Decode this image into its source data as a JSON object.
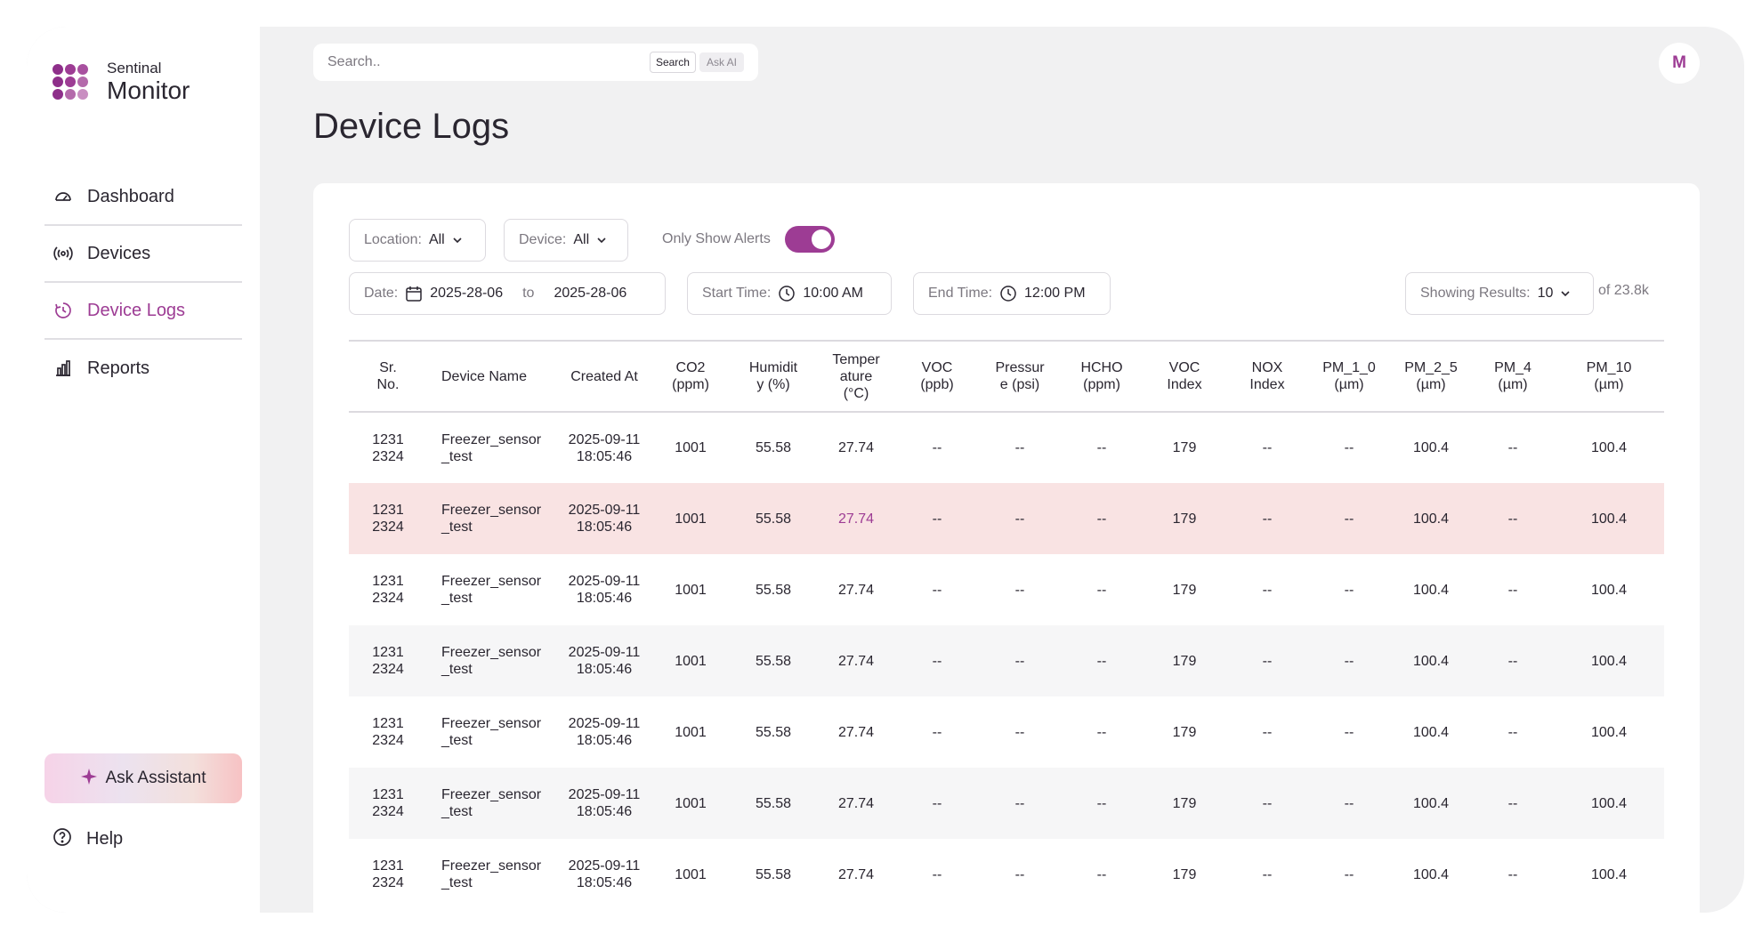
{
  "brand": {
    "small": "Sentinal",
    "big": "Monitor",
    "logo_colors": [
      "#8e2f8a",
      "#9d3c94",
      "#a8509f",
      "#8e2f8a",
      "#9d3c94",
      "#b46aab",
      "#8e2f8a",
      "#b46aab",
      "#c98ec1"
    ]
  },
  "nav": {
    "items": [
      {
        "label": "Dashboard",
        "icon": "gauge-icon"
      },
      {
        "label": "Devices",
        "icon": "broadcast-icon"
      },
      {
        "label": "Device Logs",
        "icon": "clock-logs-icon"
      },
      {
        "label": "Reports",
        "icon": "bar-chart-icon"
      }
    ],
    "active": "Device Logs"
  },
  "assistant": {
    "label": "Ask Assistant",
    "icon": "sparkle-icon"
  },
  "help": {
    "label": "Help",
    "icon": "help-circle-icon"
  },
  "search": {
    "placeholder": "Search..",
    "search_label": "Search",
    "ai_label": "Ask AI"
  },
  "user": {
    "initial": "M"
  },
  "page": {
    "title": "Device Logs"
  },
  "filters": {
    "location_key": "Location:",
    "location_value": "All",
    "device_key": "Device:",
    "device_value": "All",
    "alerts_label": "Only Show Alerts",
    "alerts_on": true,
    "date_key": "Date:",
    "date_from": "2025-28-06",
    "date_to_word": "to",
    "date_to": "2025-28-06",
    "start_key": "Start Time:",
    "start_value": "10:00 AM",
    "end_key": "End Time:",
    "end_value": "12:00 PM",
    "results_key": "Showing Results:",
    "results_value": "10",
    "total": "of 23.8k"
  },
  "colors": {
    "accent": "#9d3c94",
    "alert_row": "#f9e3e3",
    "background": "#f1f1f2"
  },
  "table": {
    "headers": [
      [
        "Sr.",
        "No."
      ],
      [
        "Device Name"
      ],
      [
        "Created At"
      ],
      [
        "CO2",
        "(ppm)"
      ],
      [
        "Humidit",
        "y (%)"
      ],
      [
        "Temper",
        "ature",
        "(°C)"
      ],
      [
        "VOC",
        "(ppb)"
      ],
      [
        "Pressur",
        "e (psi)"
      ],
      [
        "HCHO",
        "(ppm)"
      ],
      [
        "VOC",
        "Index"
      ],
      [
        "NOX",
        "Index"
      ],
      [
        "PM_1_0",
        "(µm)"
      ],
      [
        "PM_2_5",
        "(µm)"
      ],
      [
        "PM_4",
        "(µm)"
      ],
      [
        "PM_10",
        "(µm)"
      ]
    ],
    "rows": [
      {
        "alert": false,
        "cells": [
          [
            "1231",
            "2324"
          ],
          [
            "Freezer_sensor",
            "_test"
          ],
          [
            "2025-09-11",
            "18:05:46"
          ],
          "1001",
          "55.58",
          "27.74",
          "--",
          "--",
          "--",
          "179",
          "--",
          "--",
          "100.4",
          "--",
          "100.4"
        ]
      },
      {
        "alert": true,
        "cells": [
          [
            "1231",
            "2324"
          ],
          [
            "Freezer_sensor",
            "_test"
          ],
          [
            "2025-09-11",
            "18:05:46"
          ],
          "1001",
          "55.58",
          "27.74",
          "--",
          "--",
          "--",
          "179",
          "--",
          "--",
          "100.4",
          "--",
          "100.4"
        ]
      },
      {
        "alert": false,
        "cells": [
          [
            "1231",
            "2324"
          ],
          [
            "Freezer_sensor",
            "_test"
          ],
          [
            "2025-09-11",
            "18:05:46"
          ],
          "1001",
          "55.58",
          "27.74",
          "--",
          "--",
          "--",
          "179",
          "--",
          "--",
          "100.4",
          "--",
          "100.4"
        ]
      },
      {
        "alert": false,
        "cells": [
          [
            "1231",
            "2324"
          ],
          [
            "Freezer_sensor",
            "_test"
          ],
          [
            "2025-09-11",
            "18:05:46"
          ],
          "1001",
          "55.58",
          "27.74",
          "--",
          "--",
          "--",
          "179",
          "--",
          "--",
          "100.4",
          "--",
          "100.4"
        ]
      },
      {
        "alert": false,
        "cells": [
          [
            "1231",
            "2324"
          ],
          [
            "Freezer_sensor",
            "_test"
          ],
          [
            "2025-09-11",
            "18:05:46"
          ],
          "1001",
          "55.58",
          "27.74",
          "--",
          "--",
          "--",
          "179",
          "--",
          "--",
          "100.4",
          "--",
          "100.4"
        ]
      },
      {
        "alert": false,
        "cells": [
          [
            "1231",
            "2324"
          ],
          [
            "Freezer_sensor",
            "_test"
          ],
          [
            "2025-09-11",
            "18:05:46"
          ],
          "1001",
          "55.58",
          "27.74",
          "--",
          "--",
          "--",
          "179",
          "--",
          "--",
          "100.4",
          "--",
          "100.4"
        ]
      },
      {
        "alert": false,
        "cells": [
          [
            "1231",
            "2324"
          ],
          [
            "Freezer_sensor",
            "_test"
          ],
          [
            "2025-09-11",
            "18:05:46"
          ],
          "1001",
          "55.58",
          "27.74",
          "--",
          "--",
          "--",
          "179",
          "--",
          "--",
          "100.4",
          "--",
          "100.4"
        ]
      }
    ]
  }
}
